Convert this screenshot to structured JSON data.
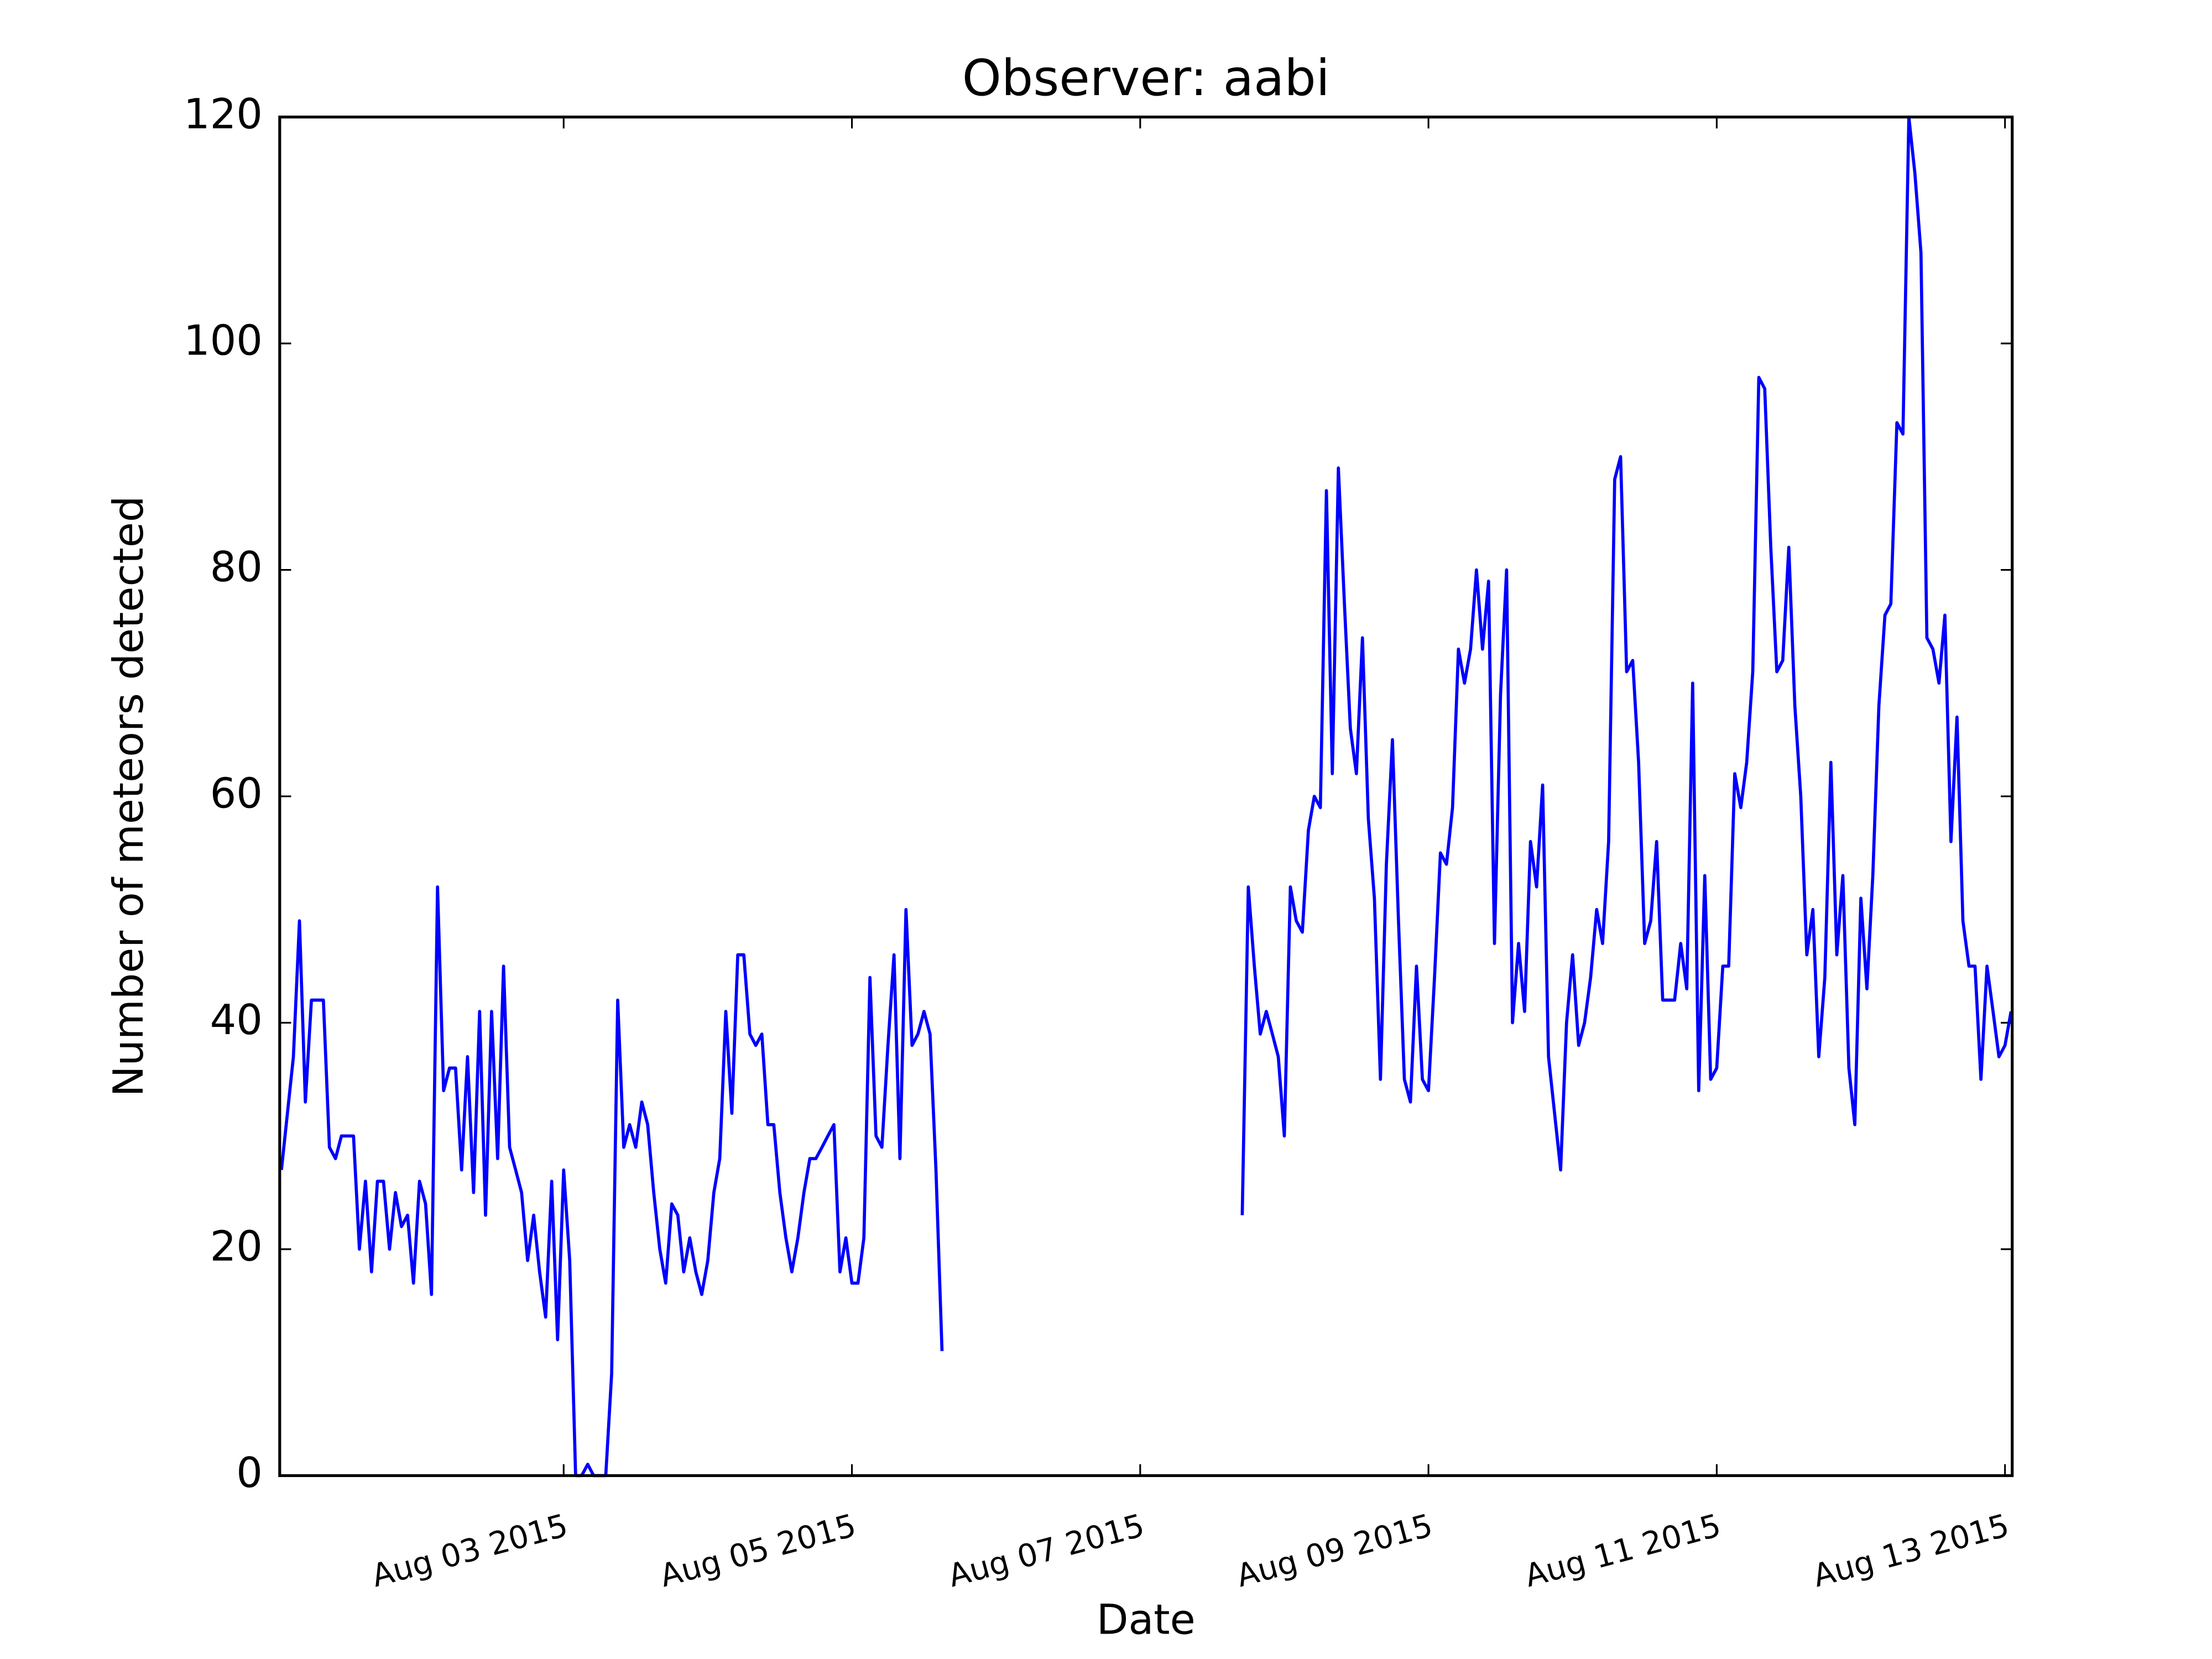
{
  "chart_data": {
    "type": "line",
    "title": "Observer: aabi",
    "x_label": "Date",
    "y_label": "Number of meteors detected",
    "x": [
      1.042,
      1.125,
      1.167,
      1.208,
      1.25,
      1.333,
      1.375,
      1.417,
      1.458,
      1.542,
      1.583,
      1.625,
      1.667,
      1.708,
      1.75,
      1.792,
      1.833,
      1.875,
      1.917,
      1.958,
      2,
      2.042,
      2.083,
      2.125,
      2.167,
      2.208,
      2.25,
      2.292,
      2.333,
      2.375,
      2.417,
      2.458,
      2.5,
      2.542,
      2.583,
      2.625,
      2.667,
      2.708,
      2.75,
      2.792,
      2.833,
      2.875,
      2.917,
      2.958,
      3,
      3.042,
      3.083,
      3.125,
      3.167,
      3.208,
      3.292,
      3.333,
      3.375,
      3.417,
      3.458,
      3.5,
      3.542,
      3.583,
      3.625,
      3.667,
      3.708,
      3.75,
      3.792,
      3.833,
      3.875,
      3.917,
      3.958,
      4,
      4.042,
      4.083,
      4.125,
      4.167,
      4.208,
      4.25,
      4.292,
      4.333,
      4.375,
      4.417,
      4.458,
      4.5,
      4.542,
      4.583,
      4.625,
      4.667,
      4.708,
      4.75,
      4.792,
      4.833,
      4.875,
      4.917,
      4.958,
      5,
      5.042,
      5.083,
      5.125,
      5.167,
      5.208,
      5.25,
      5.292,
      5.333,
      5.375,
      5.417,
      5.458,
      5.5,
      5.542,
      5.583,
      5.625,
      5.667,
      7.708,
      7.75,
      7.792,
      7.833,
      7.875,
      7.917,
      7.958,
      8,
      8.042,
      8.083,
      8.125,
      8.167,
      8.208,
      8.25,
      8.292,
      8.333,
      8.375,
      8.417,
      8.458,
      8.5,
      8.542,
      8.583,
      8.625,
      8.667,
      8.708,
      8.75,
      8.792,
      8.833,
      8.875,
      8.917,
      8.958,
      9,
      9.042,
      9.083,
      9.125,
      9.167,
      9.208,
      9.25,
      9.292,
      9.333,
      9.375,
      9.417,
      9.458,
      9.5,
      9.542,
      9.583,
      9.625,
      9.667,
      9.708,
      9.75,
      9.792,
      9.833,
      9.875,
      9.917,
      9.958,
      10,
      10.042,
      10.083,
      10.125,
      10.167,
      10.208,
      10.25,
      10.292,
      10.333,
      10.375,
      10.417,
      10.458,
      10.5,
      10.542,
      10.583,
      10.625,
      10.667,
      10.708,
      10.75,
      10.792,
      10.833,
      10.875,
      10.917,
      10.958,
      11,
      11.042,
      11.083,
      11.125,
      11.167,
      11.208,
      11.25,
      11.292,
      11.333,
      11.375,
      11.417,
      11.458,
      11.5,
      11.542,
      11.583,
      11.625,
      11.667,
      11.708,
      11.75,
      11.792,
      11.833,
      11.875,
      11.917,
      11.958,
      12,
      12.042,
      12.083,
      12.125,
      12.167,
      12.208,
      12.25,
      12.292,
      12.333,
      12.375,
      12.417,
      12.458,
      12.5,
      12.542,
      12.583,
      12.625,
      12.667,
      12.708,
      12.75,
      12.792,
      12.833,
      12.875,
      12.917,
      12.958,
      13,
      13.042
    ],
    "series": [
      {
        "color": "#0000ff",
        "values": [
          27,
          37,
          49,
          33,
          42,
          42,
          29,
          28,
          30,
          30,
          20,
          26,
          18,
          26,
          26,
          20,
          25,
          22,
          23,
          17,
          26,
          24,
          16,
          52,
          34,
          36,
          36,
          27,
          37,
          25,
          41,
          23,
          41,
          28,
          45,
          29,
          27,
          25,
          19,
          23,
          18,
          14,
          26,
          12,
          27,
          19,
          0,
          0,
          1,
          0,
          0,
          9,
          42,
          29,
          31,
          29,
          33,
          31,
          25,
          20,
          17,
          24,
          23,
          18,
          21,
          18,
          16,
          19,
          25,
          28,
          41,
          32,
          46,
          46,
          39,
          38,
          39,
          31,
          31,
          25,
          21,
          18,
          21,
          25,
          28,
          28,
          29,
          30,
          31,
          18,
          21,
          17,
          17,
          21,
          44,
          30,
          29,
          38,
          46,
          28,
          50,
          38,
          39,
          41,
          39,
          27,
          11,
          null,
          23,
          52,
          45,
          39,
          41,
          39,
          37,
          30,
          52,
          49,
          48,
          57,
          60,
          59,
          87,
          62,
          89,
          77,
          66,
          62,
          74,
          58,
          51,
          35,
          54,
          65,
          49,
          35,
          33,
          45,
          35,
          34,
          44,
          55,
          54,
          59,
          73,
          70,
          73,
          80,
          73,
          79,
          47,
          69,
          80,
          40,
          47,
          41,
          56,
          52,
          61,
          37,
          32,
          27,
          40,
          46,
          38,
          40,
          44,
          50,
          47,
          56,
          88,
          90,
          71,
          72,
          63,
          47,
          49,
          56,
          42,
          42,
          42,
          47,
          43,
          70,
          34,
          53,
          35,
          36,
          45,
          45,
          62,
          59,
          63,
          71,
          97,
          96,
          82,
          71,
          72,
          82,
          68,
          60,
          46,
          50,
          37,
          44,
          63,
          46,
          53,
          36,
          31,
          51,
          43,
          53,
          68,
          76,
          77,
          93,
          92,
          120,
          115,
          108,
          74,
          73,
          70,
          76,
          56,
          67,
          49,
          45,
          45,
          35,
          45,
          41,
          37,
          38,
          41
        ]
      }
    ],
    "xlim": [
      1.03,
      13.05
    ],
    "xticks": [
      {
        "value": 3,
        "label": "Aug 03 2015"
      },
      {
        "value": 5,
        "label": "Aug 05 2015"
      },
      {
        "value": 7,
        "label": "Aug 07 2015"
      },
      {
        "value": 9,
        "label": "Aug 09 2015"
      },
      {
        "value": 11,
        "label": "Aug 11 2015"
      },
      {
        "value": 13,
        "label": "Aug 13 2015"
      }
    ],
    "ylim": [
      0,
      120
    ],
    "yticks": [
      0,
      20,
      40,
      60,
      80,
      100,
      120
    ],
    "grid": false
  }
}
